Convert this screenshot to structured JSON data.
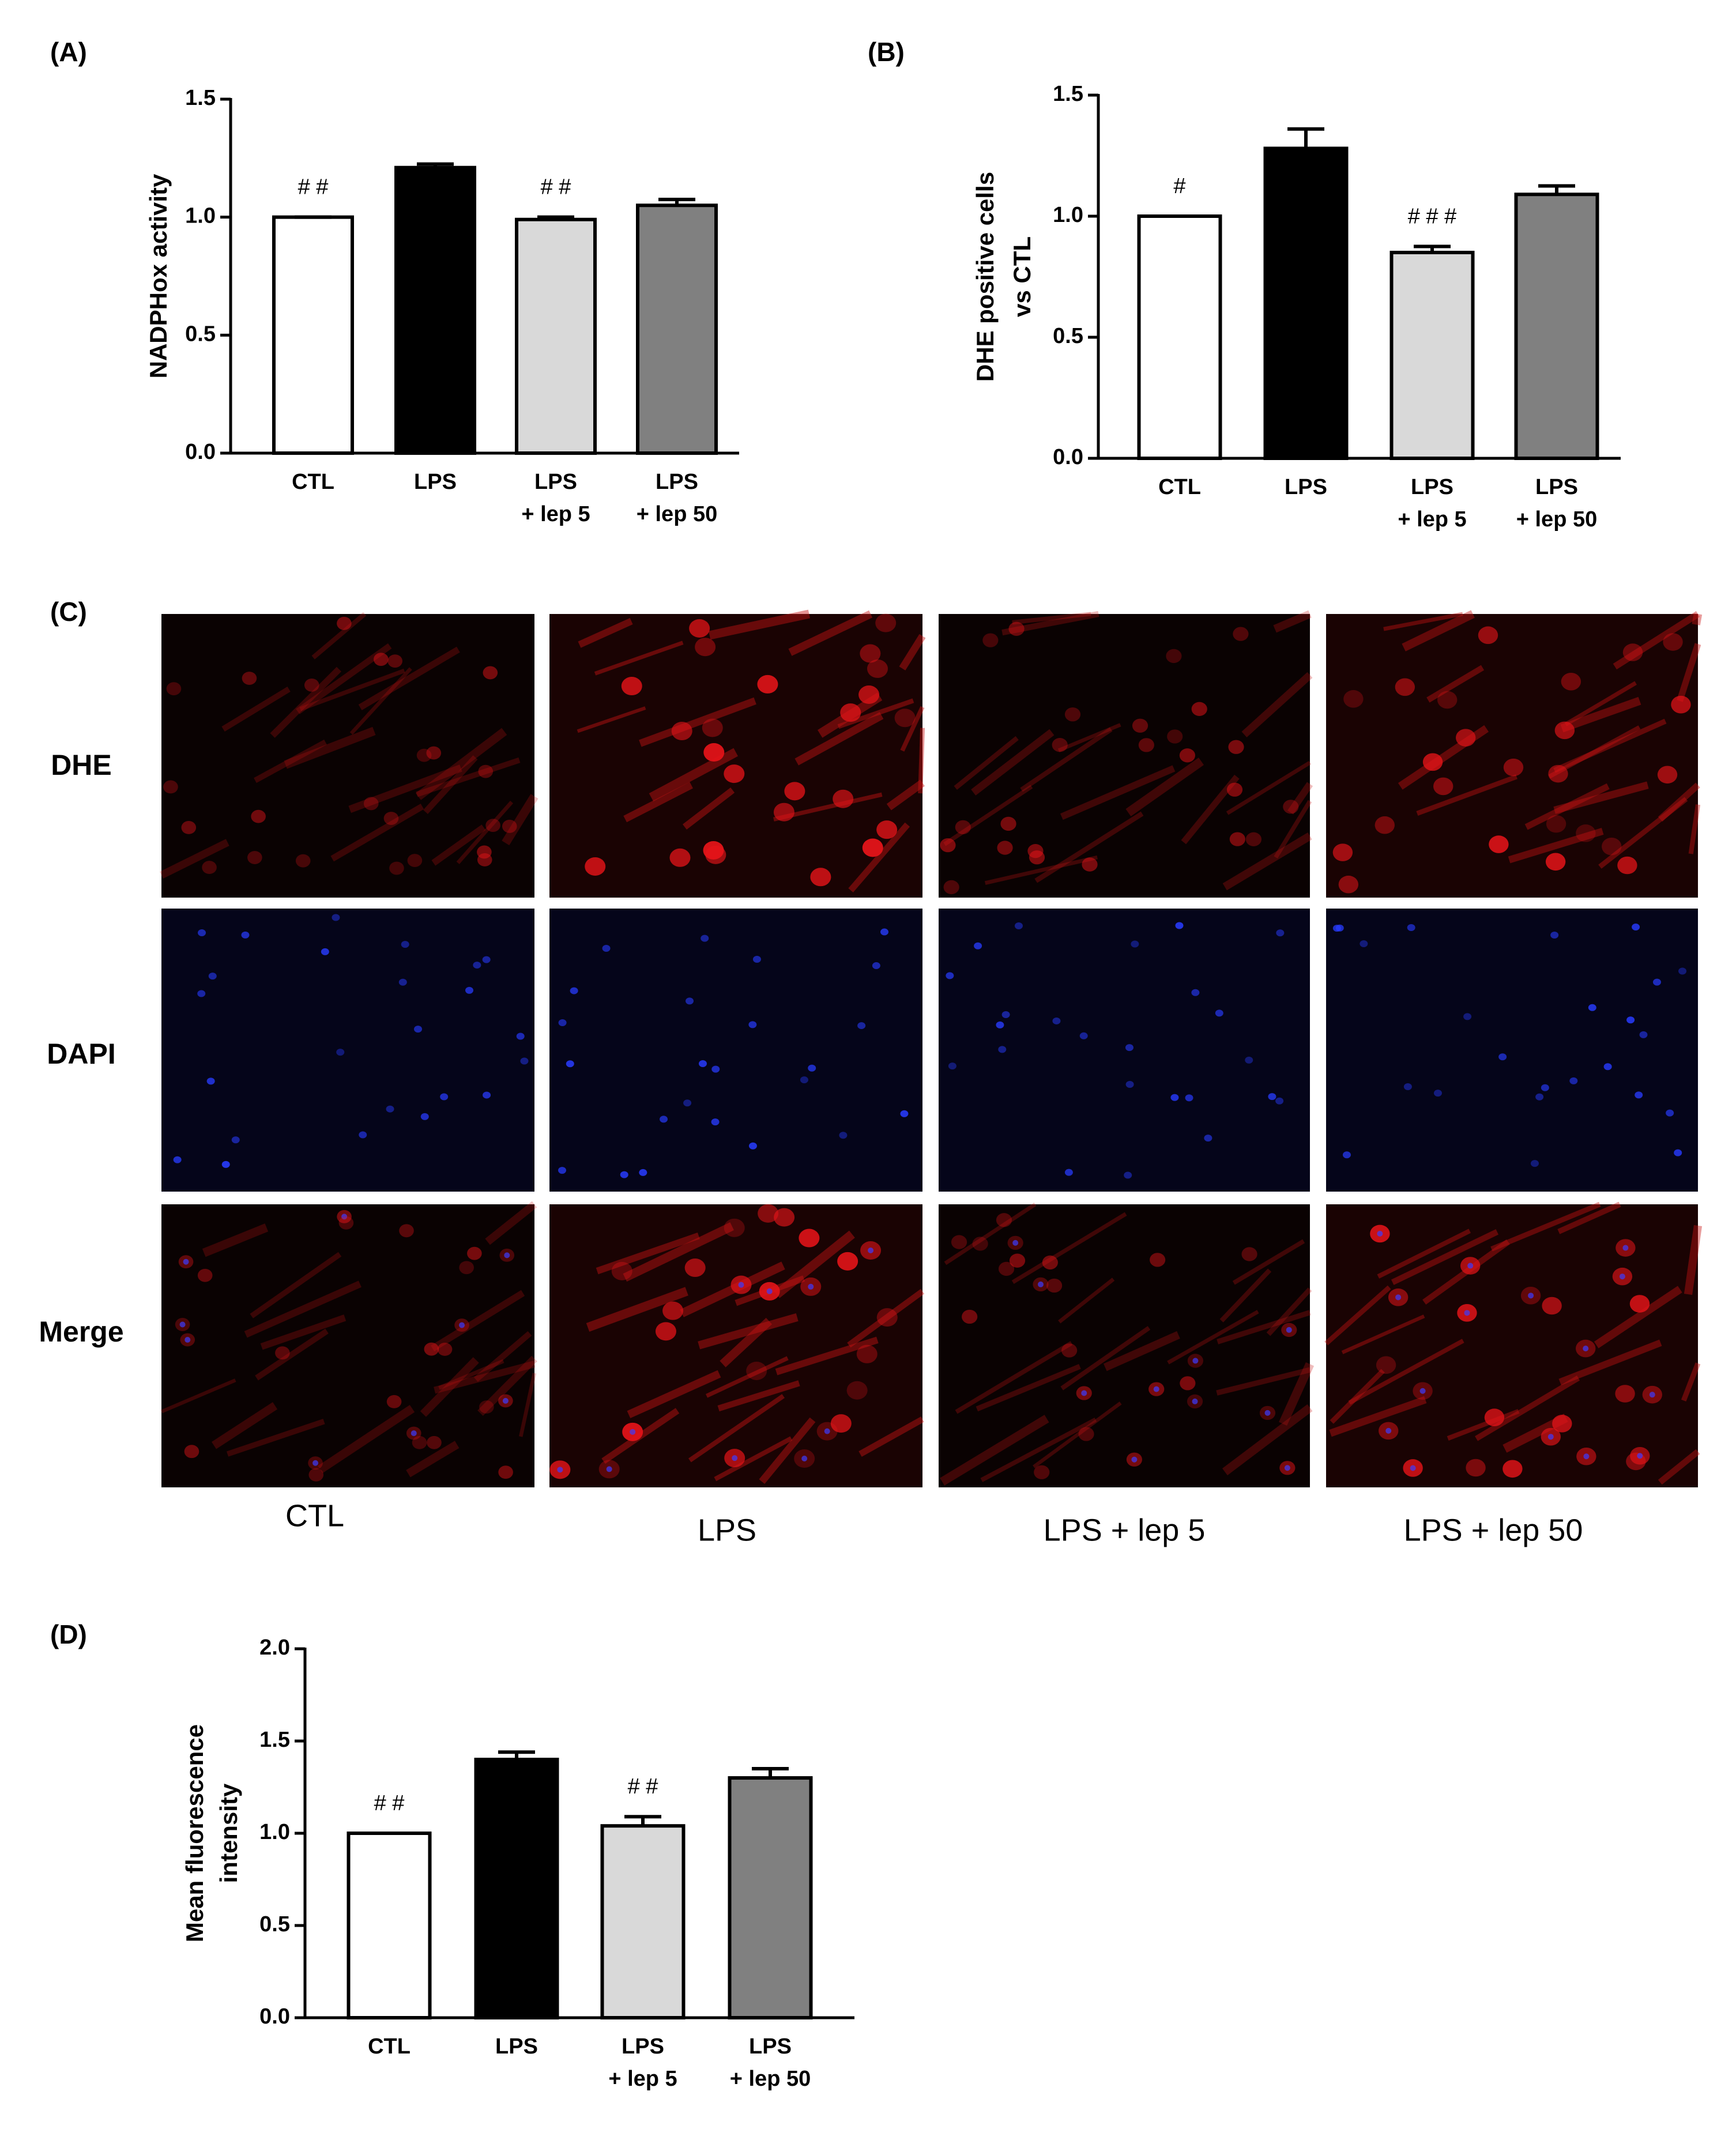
{
  "chart_data": [
    {
      "type": "bar",
      "panel": "(A)",
      "ylabel": [
        "NADPHox activity"
      ],
      "categories": [
        [
          "CTL"
        ],
        [
          "LPS"
        ],
        [
          "LPS",
          "+ lep 5"
        ],
        [
          "LPS",
          "+ lep 50"
        ]
      ],
      "values": [
        1.0,
        1.21,
        0.99,
        1.05
      ],
      "errors": [
        0,
        0.015,
        0.01,
        0.025
      ],
      "annotations": [
        "# #",
        null,
        "# #",
        null
      ],
      "colors": [
        "#ffffff",
        "#000000",
        "#d9d9d9",
        "#808080"
      ],
      "ylim": [
        0,
        1.5
      ],
      "yticks": [
        {
          "value": 0,
          "label": "0.0"
        },
        {
          "value": 0.5,
          "label": "0.5"
        },
        {
          "value": 1,
          "label": "1.0"
        },
        {
          "value": 1.5,
          "label": "1.5"
        }
      ]
    },
    {
      "type": "bar",
      "panel": "(B)",
      "ylabel": [
        "DHE positive cells",
        "vs CTL"
      ],
      "categories": [
        [
          "CTL"
        ],
        [
          "LPS"
        ],
        [
          "LPS",
          "+ lep 5"
        ],
        [
          "LPS",
          "+ lep 50"
        ]
      ],
      "values": [
        1.0,
        1.28,
        0.85,
        1.09
      ],
      "errors": [
        0,
        0.08,
        0.025,
        0.035
      ],
      "annotations": [
        "#",
        null,
        "# # #",
        null
      ],
      "colors": [
        "#ffffff",
        "#000000",
        "#d9d9d9",
        "#808080"
      ],
      "ylim": [
        0,
        1.5
      ],
      "yticks": [
        {
          "value": 0,
          "label": "0.0"
        },
        {
          "value": 0.5,
          "label": "0.5"
        },
        {
          "value": 1,
          "label": "1.0"
        },
        {
          "value": 1.5,
          "label": "1.5"
        }
      ]
    },
    {
      "type": "bar",
      "panel": "(D)",
      "ylabel": [
        "Mean fluorescence",
        "intensity"
      ],
      "categories": [
        [
          "CTL"
        ],
        [
          "LPS"
        ],
        [
          "LPS",
          "+ lep 5"
        ],
        [
          "LPS",
          "+ lep 50"
        ]
      ],
      "values": [
        1.0,
        1.4,
        1.04,
        1.3
      ],
      "errors": [
        0,
        0.04,
        0.05,
        0.05
      ],
      "annotations": [
        "# #",
        null,
        "# #",
        null
      ],
      "colors": [
        "#ffffff",
        "#000000",
        "#d9d9d9",
        "#808080"
      ],
      "ylim": [
        0,
        2
      ],
      "yticks": [
        {
          "value": 0,
          "label": "0.0"
        },
        {
          "value": 0.5,
          "label": "0.5"
        },
        {
          "value": 1,
          "label": "1.0"
        },
        {
          "value": 1.5,
          "label": "1.5"
        },
        {
          "value": 2,
          "label": "2.0"
        }
      ]
    }
  ],
  "panel_c": {
    "label": "(C)",
    "rows": [
      "DHE",
      "DAPI",
      "Merge"
    ],
    "columns": [
      "CTL",
      "LPS",
      "LPS + lep 5",
      "LPS + lep 50"
    ]
  }
}
